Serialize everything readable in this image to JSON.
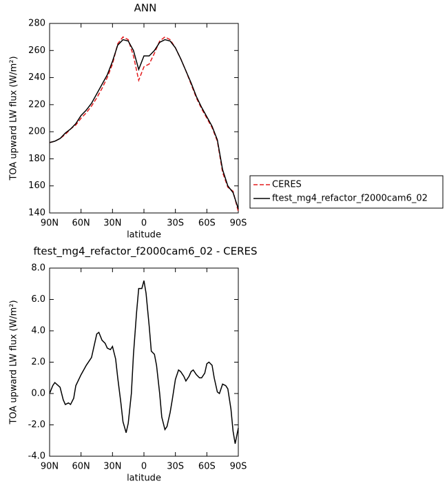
{
  "chart_data": [
    {
      "type": "line",
      "title": "ANN",
      "x_label": "latitude",
      "y_label": "TOA upward LW flux (W/m²)",
      "x": [
        90,
        85,
        80,
        75,
        70,
        65,
        60,
        55,
        50,
        45,
        40,
        35,
        30,
        25,
        20,
        15,
        10,
        5,
        0,
        -5,
        -10,
        -15,
        -20,
        -25,
        -30,
        -35,
        -40,
        -45,
        -50,
        -55,
        -60,
        -65,
        -70,
        -75,
        -80,
        -85,
        -90
      ],
      "series": [
        {
          "name": "CERES",
          "color": "#e31a1c",
          "dashed": true,
          "values": [
            192,
            193,
            195,
            198,
            202,
            205,
            210,
            214,
            219,
            225,
            232,
            240,
            250,
            265,
            270,
            268,
            256,
            238,
            248,
            250,
            258,
            267,
            270,
            268,
            262,
            254,
            245,
            235,
            225,
            217,
            210,
            203,
            193,
            170,
            159,
            156,
            141
          ]
        },
        {
          "name": "ftest_mg4_refactor_f2000cam6_02",
          "color": "#000000",
          "dashed": false,
          "values": [
            192,
            193,
            195,
            199,
            202,
            206,
            212,
            216,
            221,
            228,
            235,
            242,
            252,
            264,
            268,
            267,
            260,
            246,
            256,
            256,
            260,
            266,
            268,
            267,
            262,
            254,
            245,
            236,
            226,
            218,
            211,
            204,
            194,
            172,
            160,
            155,
            143
          ]
        }
      ],
      "xlim": [
        90,
        -90
      ],
      "xticks": [
        {
          "value": 90,
          "label": "90N"
        },
        {
          "value": 60,
          "label": "60N"
        },
        {
          "value": 30,
          "label": "30N"
        },
        0,
        {
          "value": -30,
          "label": "30S"
        },
        {
          "value": -60,
          "label": "60S"
        },
        {
          "value": -90,
          "label": "90S"
        }
      ],
      "ylim": [
        140,
        280
      ],
      "yticks": [
        140,
        160,
        180,
        200,
        220,
        240,
        260,
        280
      ],
      "legend": "outside-right"
    },
    {
      "type": "line",
      "title": "ftest_mg4_refactor_f2000cam6_02 - CERES",
      "x_label": "latitude",
      "y_label": "TOA upward LW flux (W/m²)",
      "x": [
        90,
        87,
        85,
        80,
        77,
        75,
        72,
        70,
        67,
        65,
        60,
        55,
        50,
        45,
        43,
        40,
        37,
        35,
        32,
        30,
        27,
        25,
        22,
        20,
        17,
        15,
        12,
        10,
        7,
        5,
        2,
        0,
        -2,
        -5,
        -7,
        -10,
        -12,
        -15,
        -17,
        -20,
        -22,
        -25,
        -27,
        -30,
        -33,
        -35,
        -38,
        -40,
        -43,
        -45,
        -47,
        -50,
        -53,
        -55,
        -58,
        -60,
        -62,
        -65,
        -67,
        -70,
        -72,
        -75,
        -78,
        -80,
        -83,
        -85,
        -87,
        -90
      ],
      "series": [
        {
          "color": "#000000",
          "dashed": false,
          "values": [
            0.0,
            0.5,
            0.7,
            0.4,
            -0.4,
            -0.7,
            -0.6,
            -0.7,
            -0.3,
            0.5,
            1.2,
            1.8,
            2.3,
            3.8,
            3.9,
            3.4,
            3.2,
            2.9,
            2.8,
            3.0,
            2.2,
            1.0,
            -0.6,
            -1.8,
            -2.5,
            -1.9,
            0.0,
            2.5,
            5.2,
            6.7,
            6.7,
            7.2,
            6.4,
            4.3,
            2.7,
            2.5,
            1.8,
            0.0,
            -1.5,
            -2.3,
            -2.1,
            -1.2,
            -0.4,
            0.9,
            1.5,
            1.4,
            1.1,
            0.8,
            1.1,
            1.4,
            1.5,
            1.2,
            1.0,
            1.0,
            1.3,
            1.9,
            2.0,
            1.8,
            1.0,
            0.1,
            0.0,
            0.6,
            0.5,
            0.3,
            -1.0,
            -2.4,
            -3.2,
            -2.2
          ]
        }
      ],
      "xlim": [
        90,
        -90
      ],
      "xticks": [
        {
          "value": 90,
          "label": "90N"
        },
        {
          "value": 60,
          "label": "60N"
        },
        {
          "value": 30,
          "label": "30N"
        },
        0,
        {
          "value": -30,
          "label": "30S"
        },
        {
          "value": -60,
          "label": "60S"
        },
        {
          "value": -90,
          "label": "90S"
        }
      ],
      "ylim": [
        -4,
        8
      ],
      "yticks": [
        {
          "value": -4,
          "label": "-4.0"
        },
        {
          "value": -2,
          "label": "-2.0"
        },
        {
          "value": 0,
          "label": "0.0"
        },
        {
          "value": 2,
          "label": "2.0"
        },
        {
          "value": 4,
          "label": "4.0"
        },
        {
          "value": 6,
          "label": "6.0"
        },
        {
          "value": 8,
          "label": "8.0"
        }
      ]
    }
  ]
}
